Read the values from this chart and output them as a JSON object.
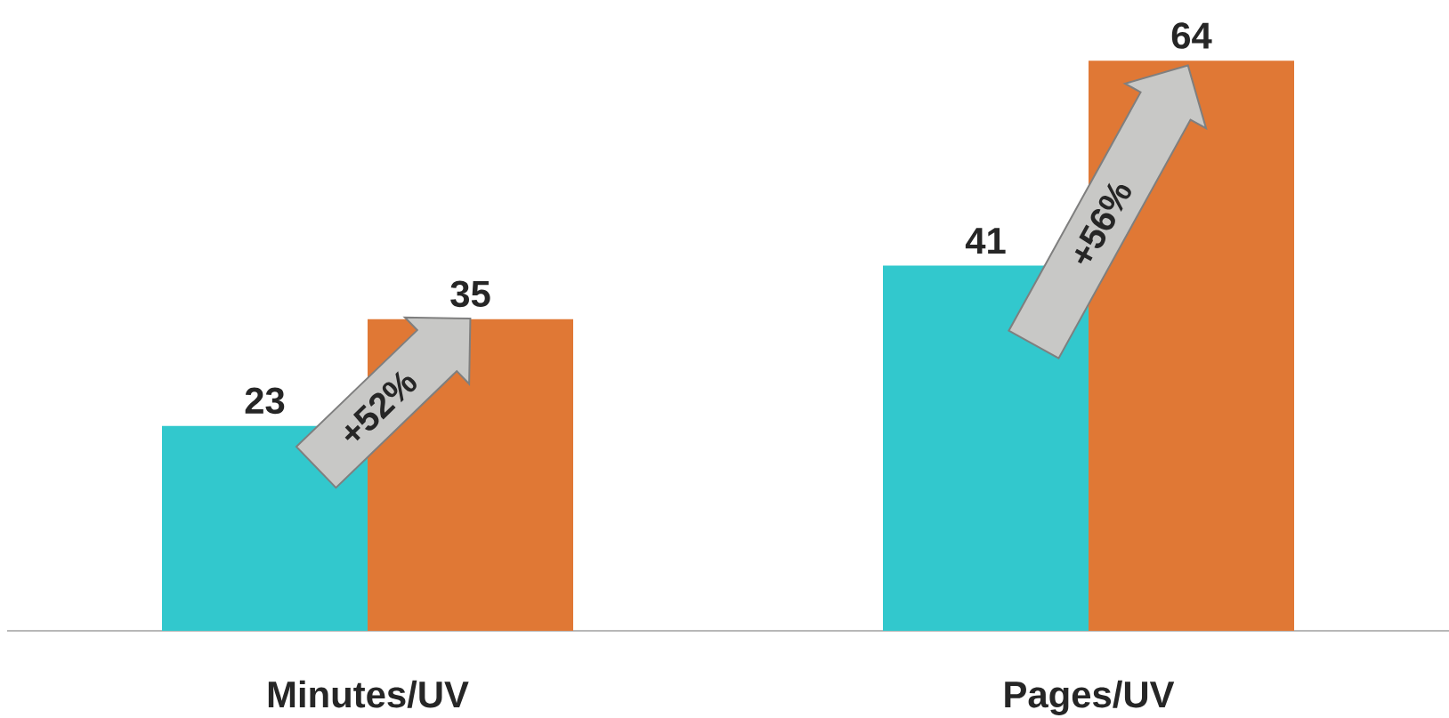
{
  "chart_data": {
    "type": "bar",
    "categories": [
      "Minutes/UV",
      "Pages/UV"
    ],
    "series": [
      {
        "color": "#32c8cd",
        "values": [
          23,
          41
        ]
      },
      {
        "color": "#e07835",
        "values": [
          35,
          64
        ]
      }
    ],
    "data_labels": true,
    "tick_labels": "x",
    "annotations": [
      "+52%",
      "+56%"
    ]
  }
}
